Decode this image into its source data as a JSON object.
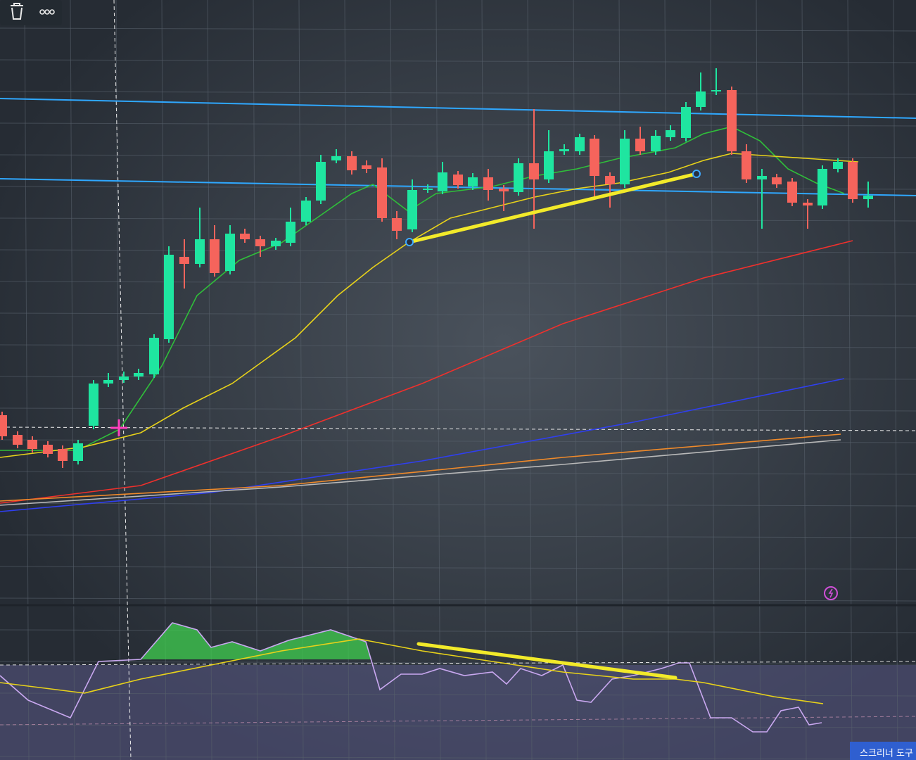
{
  "ui": {
    "screener_button": "스크리너 도구"
  },
  "chart_data": [
    {
      "type": "candlestick",
      "xlim": [
        0,
        1302
      ],
      "ylim": [
        0,
        860
      ],
      "grid": true,
      "up_color": "#1fe5a0",
      "down_color": "#f5645c",
      "x": [
        3,
        25,
        46,
        68,
        89,
        111,
        133,
        154,
        176,
        197,
        219,
        240,
        262,
        284,
        305,
        327,
        348,
        370,
        392,
        413,
        435,
        456,
        478,
        500,
        521,
        543,
        564,
        586,
        608,
        629,
        651,
        672,
        694,
        716,
        737,
        759,
        780,
        802,
        824,
        845,
        867,
        888,
        910,
        932,
        953,
        975,
        996,
        1018,
        1040,
        1061,
        1083,
        1104,
        1126,
        1148,
        1169,
        1191,
        1212,
        1234
      ],
      "open": [
        270,
        242,
        235,
        228,
        222,
        205,
        255,
        315,
        320,
        325,
        328,
        378,
        495,
        485,
        520,
        475,
        528,
        520,
        510,
        515,
        545,
        575,
        632,
        638,
        625,
        622,
        550,
        534,
        590,
        588,
        612,
        595,
        608,
        592,
        587,
        628,
        605,
        645,
        645,
        663,
        610,
        598,
        663,
        645,
        665,
        664,
        708,
        730,
        732,
        645,
        605,
        608,
        602,
        572,
        568,
        620,
        630,
        577
      ],
      "high": [
        275,
        247,
        240,
        233,
        227,
        235,
        320,
        330,
        332,
        336,
        385,
        510,
        520,
        565,
        540,
        540,
        535,
        525,
        522,
        565,
        580,
        640,
        648,
        645,
        632,
        635,
        560,
        605,
        598,
        630,
        617,
        614,
        620,
        597,
        635,
        705,
        675,
        655,
        670,
        668,
        615,
        675,
        680,
        675,
        682,
        715,
        757,
        763,
        737,
        655,
        620,
        613,
        607,
        577,
        625,
        635,
        635,
        602
      ],
      "low": [
        235,
        223,
        217,
        210,
        195,
        200,
        250,
        310,
        316,
        320,
        323,
        373,
        450,
        480,
        467,
        470,
        515,
        495,
        505,
        510,
        540,
        570,
        628,
        612,
        614,
        545,
        520,
        530,
        586,
        584,
        592,
        590,
        575,
        560,
        582,
        535,
        600,
        640,
        640,
        580,
        565,
        593,
        640,
        640,
        660,
        659,
        703,
        725,
        640,
        600,
        535,
        593,
        567,
        535,
        563,
        615,
        572,
        565
      ],
      "close": [
        240,
        228,
        222,
        215,
        205,
        230,
        315,
        320,
        325,
        330,
        380,
        498,
        485,
        520,
        472,
        528,
        520,
        510,
        518,
        545,
        575,
        630,
        638,
        618,
        620,
        550,
        532,
        590,
        592,
        615,
        597,
        608,
        590,
        588,
        628,
        605,
        645,
        648,
        665,
        610,
        598,
        663,
        645,
        667,
        675,
        708,
        730,
        732,
        645,
        605,
        610,
        598,
        572,
        568,
        620,
        630,
        577,
        582
      ],
      "overlays": [
        {
          "color": "#2fbf3a",
          "x": [
            0,
            110,
            170,
            230,
            280,
            340,
            400,
            450,
            500,
            530,
            580,
            620,
            700,
            760,
            820,
            880,
            960,
            1000,
            1040,
            1080,
            1120,
            1160,
            1200
          ],
          "values": [
            220,
            220,
            250,
            340,
            440,
            490,
            515,
            550,
            585,
            598,
            560,
            585,
            595,
            610,
            620,
            635,
            650,
            670,
            680,
            660,
            620,
            600,
            585
          ]
        },
        {
          "color": "#e8d21a",
          "x": [
            0,
            120,
            200,
            260,
            330,
            420,
            480,
            530,
            580,
            640,
            700,
            760,
            820,
            880,
            950,
            1000,
            1040,
            1100,
            1220
          ],
          "values": [
            210,
            225,
            245,
            280,
            315,
            380,
            440,
            480,
            515,
            550,
            565,
            580,
            592,
            600,
            615,
            632,
            642,
            638,
            630
          ]
        },
        {
          "color": "#f0302c",
          "x": [
            0,
            200,
            400,
            600,
            800,
            1000,
            1212
          ],
          "values": [
            145,
            170,
            240,
            315,
            400,
            465,
            518
          ]
        },
        {
          "color": "#2f3ff0",
          "x": [
            0,
            300,
            600,
            900,
            1200
          ],
          "values": [
            133,
            160,
            205,
            260,
            322
          ]
        },
        {
          "color": "#f08a2a",
          "x": [
            0,
            400,
            800,
            1195
          ],
          "values": [
            148,
            170,
            210,
            243
          ]
        },
        {
          "color": "#b9b9b9",
          "x": [
            0,
            400,
            800,
            1195
          ],
          "values": [
            142,
            168,
            200,
            235
          ]
        }
      ],
      "levels": [
        {
          "color": "#2fa8ff",
          "x": [
            0,
            1302
          ],
          "values": [
            720,
            692
          ]
        },
        {
          "color": "#2fa8ff",
          "x": [
            0,
            1302
          ],
          "values": [
            606,
            582
          ]
        }
      ],
      "trendline": {
        "color": "#f2ea2a",
        "x": [
          582,
          990
        ],
        "values": [
          516,
          613
        ]
      }
    },
    {
      "type": "line",
      "xlim": [
        0,
        1302
      ],
      "ylim": [
        0,
        220
      ],
      "series": [
        {
          "color": "#c9a8f0",
          "x": [
            0,
            40,
            100,
            140,
            200,
            245,
            280,
            300,
            330,
            370,
            410,
            470,
            520,
            540,
            570,
            600,
            625,
            660,
            700,
            720,
            740,
            770,
            800,
            820,
            840,
            870,
            900,
            940,
            965,
            980,
            1010,
            1040,
            1070,
            1090,
            1110,
            1135,
            1150,
            1168
          ],
          "values": [
            120,
            85,
            60,
            140,
            143,
            195,
            185,
            160,
            168,
            155,
            170,
            185,
            168,
            100,
            122,
            122,
            130,
            120,
            125,
            108,
            130,
            120,
            135,
            85,
            82,
            115,
            120,
            130,
            138,
            138,
            60,
            60,
            40,
            40,
            70,
            75,
            50,
            53
          ]
        },
        {
          "color": "#e8d21a",
          "x": [
            0,
            120,
            200,
            300,
            400,
            510,
            600,
            700,
            800,
            900,
            960,
            1000,
            1100,
            1170
          ],
          "values": [
            110,
            95,
            115,
            135,
            155,
            172,
            155,
            140,
            125,
            115,
            115,
            110,
            90,
            80
          ]
        }
      ],
      "trendline": {
        "color": "#f2ea2a",
        "x": [
          595,
          960
        ],
        "values": [
          165,
          117
        ]
      }
    }
  ]
}
